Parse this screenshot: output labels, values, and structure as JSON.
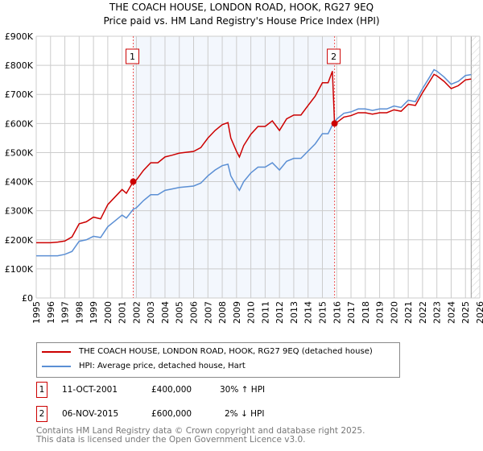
{
  "chart_data": {
    "type": "line",
    "title": "THE COACH HOUSE, LONDON ROAD, HOOK, RG27 9EQ",
    "subtitle": "Price paid vs. HM Land Registry's House Price Index (HPI)",
    "xlim": [
      1995,
      2026
    ],
    "ylim": [
      0,
      900000
    ],
    "x_ticks": [
      "1995",
      "1996",
      "1997",
      "1998",
      "1999",
      "2000",
      "2001",
      "2002",
      "2003",
      "2004",
      "2005",
      "2006",
      "2007",
      "2008",
      "2009",
      "2010",
      "2011",
      "2012",
      "2013",
      "2014",
      "2015",
      "2016",
      "2017",
      "2018",
      "2019",
      "2020",
      "2021",
      "2022",
      "2023",
      "2024",
      "2025",
      "2026"
    ],
    "y_ticks": [
      {
        "v": 0,
        "l": "£0"
      },
      {
        "v": 100000,
        "l": "£100K"
      },
      {
        "v": 200000,
        "l": "£200K"
      },
      {
        "v": 300000,
        "l": "£300K"
      },
      {
        "v": 400000,
        "l": "£400K"
      },
      {
        "v": 500000,
        "l": "£500K"
      },
      {
        "v": 600000,
        "l": "£600K"
      },
      {
        "v": 700000,
        "l": "£700K"
      },
      {
        "v": 800000,
        "l": "£800K"
      },
      {
        "v": 900000,
        "l": "£900K"
      }
    ],
    "grid": true,
    "x": [
      1995,
      1996,
      1996.5,
      1997,
      1997.5,
      1998,
      1998.5,
      1999,
      1999.5,
      2000,
      2000.5,
      2001,
      2001.3,
      2001.78,
      2002,
      2002.5,
      2003,
      2003.5,
      2004,
      2004.5,
      2005,
      2006,
      2006.5,
      2007,
      2007.5,
      2008,
      2008.4,
      2008.6,
      2009,
      2009.2,
      2009.5,
      2010,
      2010.5,
      2011,
      2011.5,
      2012,
      2012.5,
      2013,
      2013.5,
      2014,
      2014.5,
      2015,
      2015.4,
      2015.7,
      2015.85,
      2016,
      2016.5,
      2017,
      2017.5,
      2018,
      2018.5,
      2019,
      2019.5,
      2020,
      2020.5,
      2021,
      2021.5,
      2022,
      2022.5,
      2022.8,
      2023,
      2023.5,
      2024,
      2024.5,
      2025,
      2025.4
    ],
    "series": [
      {
        "name": "THE COACH HOUSE, LONDON ROAD, HOOK, RG27 9EQ (detached house)",
        "color": "#cc0000",
        "values": [
          190000,
          190000,
          192000,
          196000,
          210000,
          255000,
          262000,
          278000,
          272000,
          321000,
          347000,
          373000,
          360000,
          400000,
          406000,
          439000,
          465000,
          465000,
          485000,
          491000,
          498000,
          504000,
          517000,
          550000,
          576000,
          596000,
          603000,
          550000,
          504000,
          485000,
          524000,
          563000,
          590000,
          590000,
          609000,
          576000,
          616000,
          629000,
          629000,
          662000,
          694000,
          740000,
          740000,
          780000,
          600000,
          603000,
          622000,
          627000,
          637000,
          637000,
          632000,
          637000,
          637000,
          647000,
          642000,
          666000,
          662000,
          706000,
          745000,
          769000,
          764000,
          745000,
          720000,
          730000,
          750000,
          753000
        ]
      },
      {
        "name": "HPI: Average price, detached house, Hart",
        "color": "#5b8fd4",
        "values": [
          145000,
          145000,
          145000,
          150000,
          160000,
          195000,
          200000,
          212000,
          208000,
          245000,
          265000,
          285000,
          275000,
          305000,
          310000,
          335000,
          355000,
          355000,
          370000,
          375000,
          380000,
          385000,
          395000,
          420000,
          440000,
          455000,
          460000,
          420000,
          385000,
          370000,
          400000,
          430000,
          450000,
          450000,
          465000,
          440000,
          470000,
          480000,
          480000,
          505000,
          530000,
          565000,
          565000,
          595000,
          605000,
          615000,
          635000,
          640000,
          650000,
          650000,
          645000,
          650000,
          650000,
          660000,
          655000,
          680000,
          675000,
          720000,
          760000,
          785000,
          780000,
          760000,
          735000,
          745000,
          765000,
          768000
        ]
      }
    ],
    "sales": [
      {
        "label": "1",
        "x": 2001.78,
        "y": 400000
      },
      {
        "label": "2",
        "x": 2015.85,
        "y": 600000
      }
    ],
    "shaded_range": [
      2001.78,
      2015.85
    ],
    "hatched_from": 2025.4,
    "legend_position": "below"
  },
  "legend": {
    "red": "THE COACH HOUSE, LONDON ROAD, HOOK, RG27 9EQ (detached house)",
    "blue": "HPI: Average price, detached house, Hart"
  },
  "transactions": [
    {
      "num": "1",
      "date": "11-OCT-2001",
      "price": "£400,000",
      "hpi": "30% ↑ HPI"
    },
    {
      "num": "2",
      "date": "06-NOV-2015",
      "price": "£600,000",
      "hpi": "2% ↓ HPI"
    }
  ],
  "footer": [
    "Contains HM Land Registry data © Crown copyright and database right 2025.",
    "This data is licensed under the Open Government Licence v3.0."
  ]
}
